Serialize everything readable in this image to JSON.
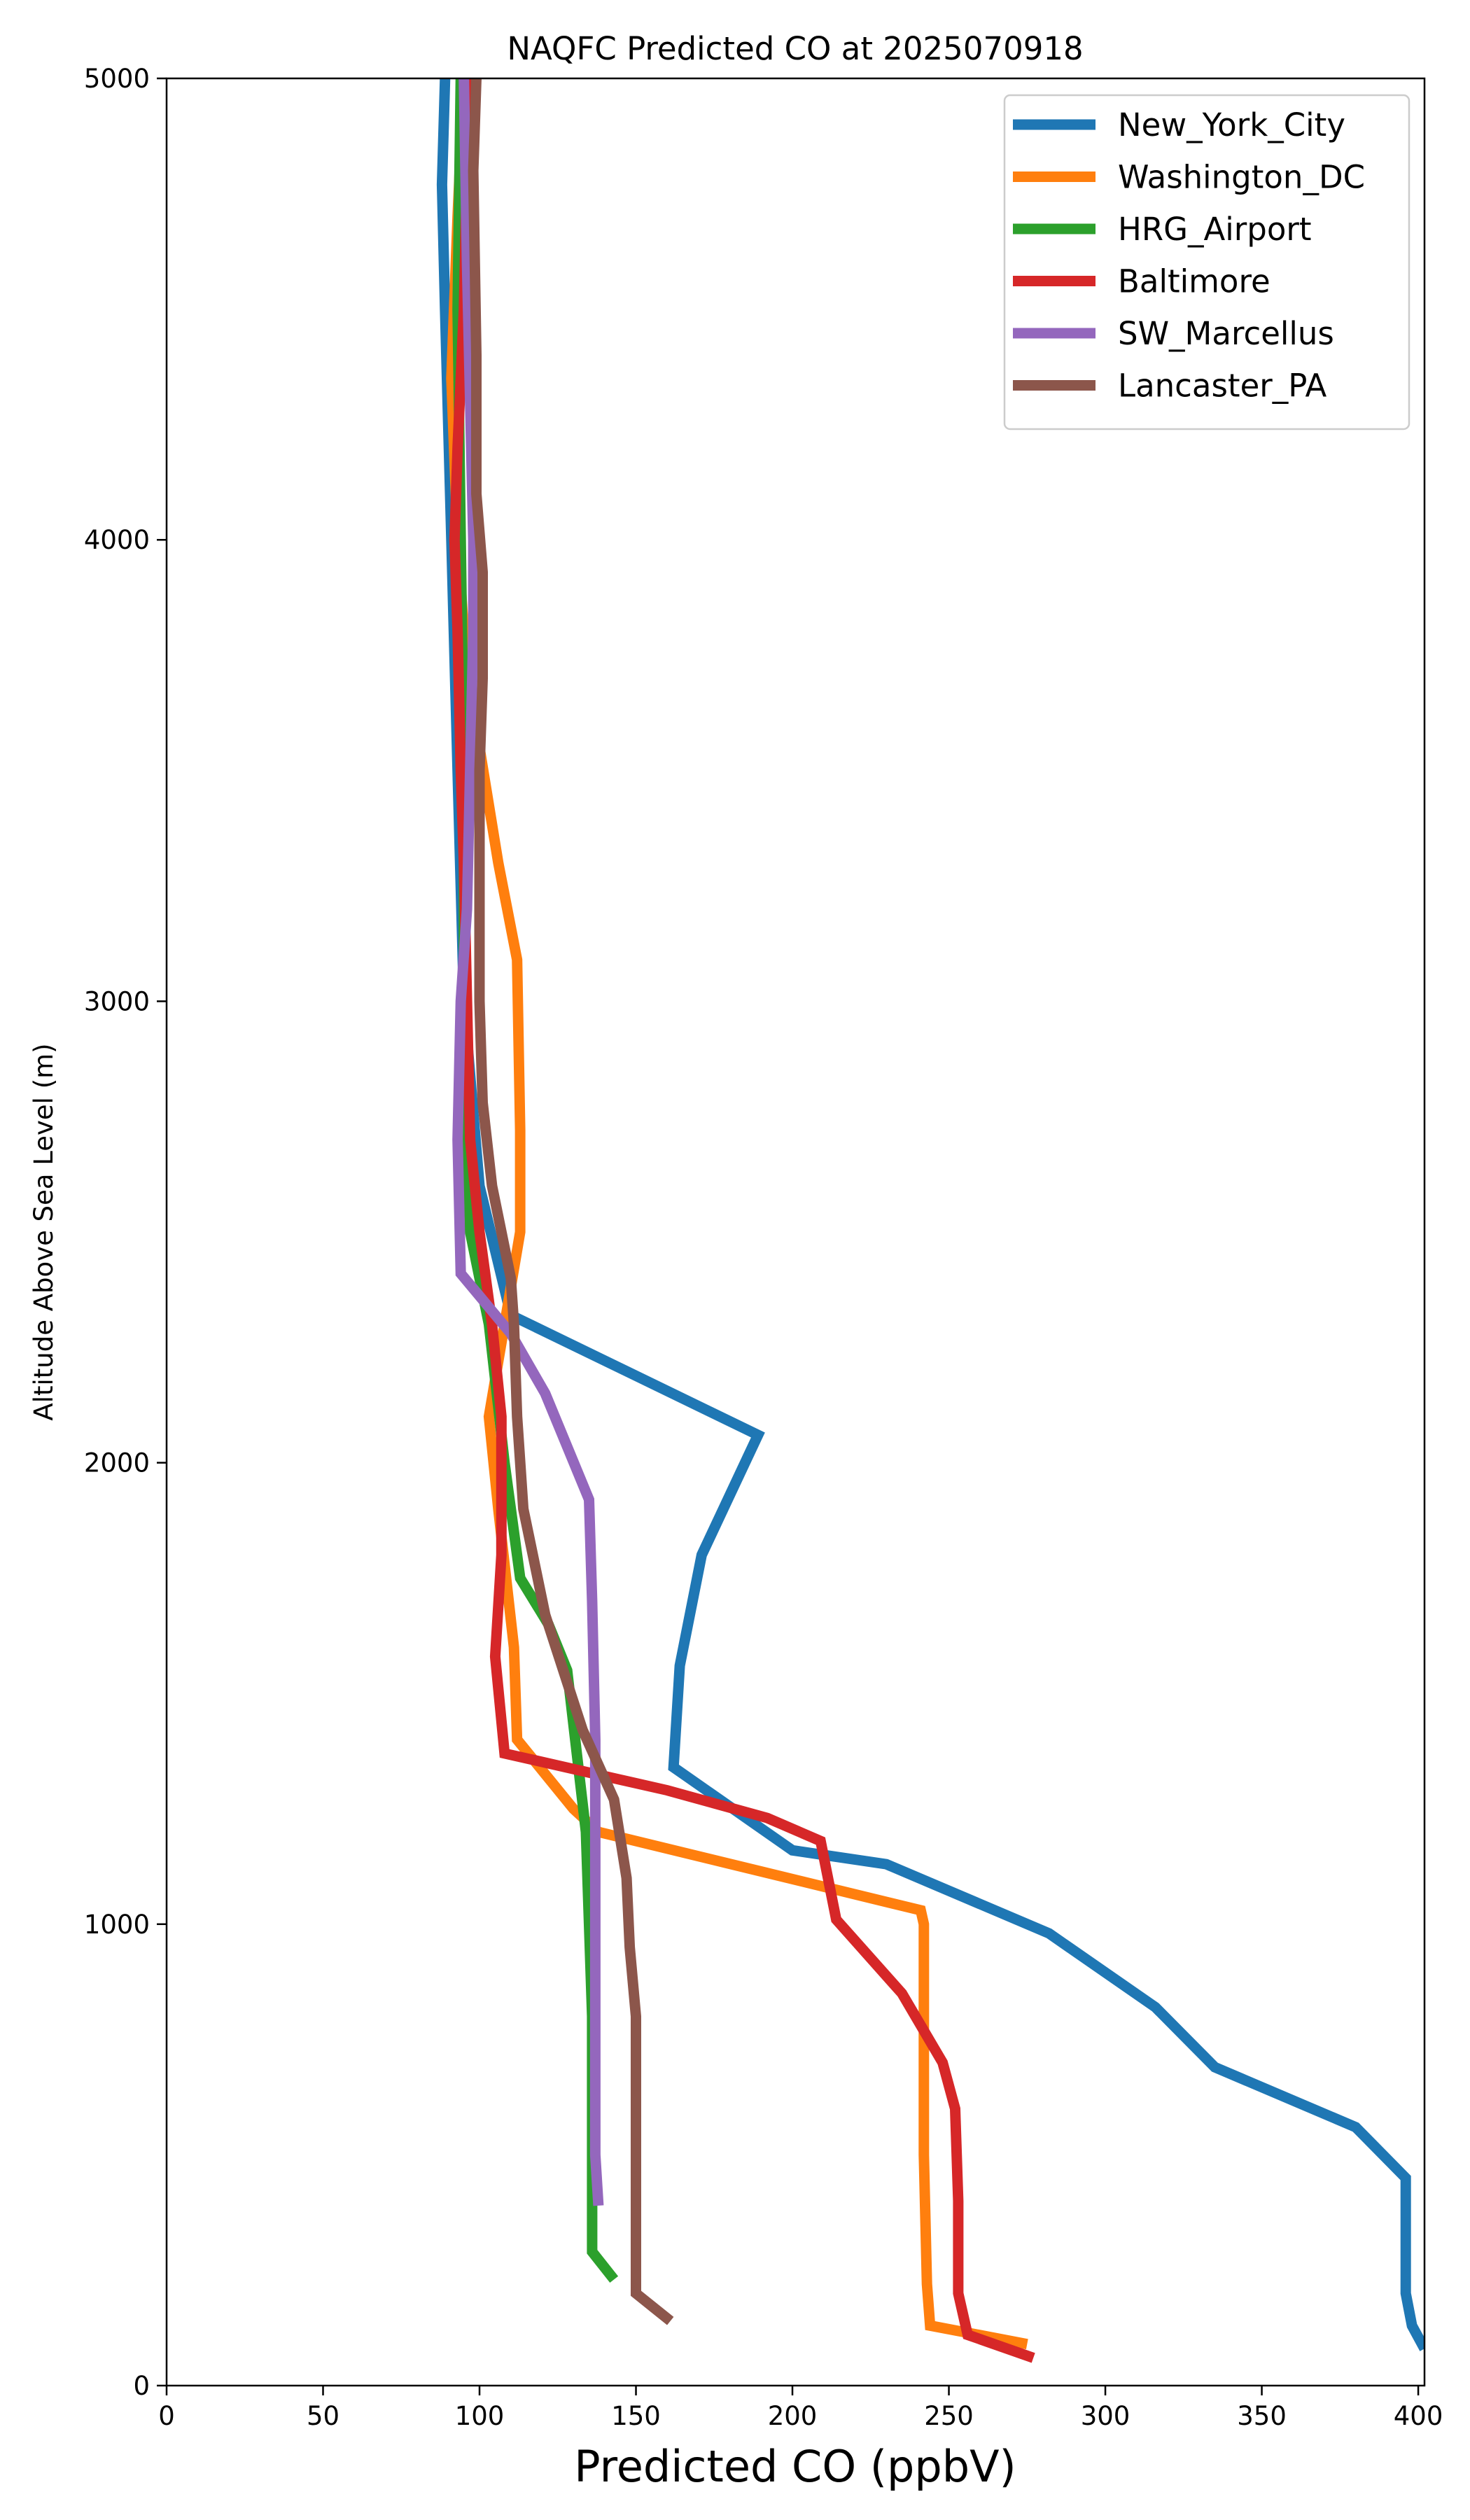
{
  "chart_data": {
    "type": "line",
    "title": "NAQFC Predicted CO at 2025070918",
    "xlabel": "Predicted CO (ppbV)",
    "ylabel": "Altitude Above Sea Level (m)",
    "xlim": [
      0,
      402
    ],
    "ylim": [
      0,
      5000
    ],
    "xticks": [
      "0",
      "50",
      "100",
      "150",
      "200",
      "250",
      "300",
      "350",
      "400"
    ],
    "yticks": [
      "0",
      "1000",
      "2000",
      "3000",
      "4000",
      "5000"
    ],
    "grid": false,
    "legend_position": "top-right",
    "series": [
      {
        "name": "New_York_City",
        "color": "#1f77b4",
        "points": [
          [
            402,
            80
          ],
          [
            398,
            130
          ],
          [
            396,
            200
          ],
          [
            396,
            300
          ],
          [
            396,
            450
          ],
          [
            380,
            560
          ],
          [
            335,
            690
          ],
          [
            316,
            820
          ],
          [
            282,
            980
          ],
          [
            230,
            1130
          ],
          [
            200,
            1160
          ],
          [
            162,
            1340
          ],
          [
            164,
            1560
          ],
          [
            171,
            1800
          ],
          [
            189,
            2060
          ],
          [
            110,
            2320
          ],
          [
            100,
            2600
          ],
          [
            95,
            3000
          ],
          [
            93,
            3500
          ],
          [
            91,
            4000
          ],
          [
            89,
            4500
          ],
          [
            88,
            4770
          ],
          [
            89,
            5000
          ]
        ]
      },
      {
        "name": "Washington_DC",
        "color": "#ff7f0e",
        "points": [
          [
            275,
            90
          ],
          [
            244,
            130
          ],
          [
            243,
            220
          ],
          [
            242,
            500
          ],
          [
            242,
            700
          ],
          [
            242,
            1000
          ],
          [
            241,
            1030
          ],
          [
            138,
            1200
          ],
          [
            130,
            1250
          ],
          [
            112,
            1400
          ],
          [
            111,
            1600
          ],
          [
            106,
            1900
          ],
          [
            103,
            2100
          ],
          [
            108,
            2300
          ],
          [
            113,
            2500
          ],
          [
            113,
            2720
          ],
          [
            112,
            3090
          ],
          [
            106,
            3300
          ],
          [
            100,
            3550
          ],
          [
            95,
            3800
          ],
          [
            93,
            4000
          ],
          [
            91,
            4350
          ],
          [
            93,
            4700
          ],
          [
            95,
            5000
          ]
        ]
      },
      {
        "name": "HRG_Airport",
        "color": "#2ca02c",
        "points": [
          [
            143,
            230
          ],
          [
            136,
            290
          ],
          [
            136,
            500
          ],
          [
            136,
            800
          ],
          [
            134,
            1200
          ],
          [
            128,
            1550
          ],
          [
            122,
            1650
          ],
          [
            113,
            1750
          ],
          [
            108,
            2000
          ],
          [
            103,
            2300
          ],
          [
            97,
            2500
          ],
          [
            95,
            3000
          ],
          [
            95,
            3500
          ],
          [
            94,
            4000
          ],
          [
            93,
            4500
          ],
          [
            94,
            5000
          ]
        ]
      },
      {
        "name": "Baltimore",
        "color": "#d62728",
        "points": [
          [
            277,
            60
          ],
          [
            256,
            110
          ],
          [
            253,
            200
          ],
          [
            253,
            400
          ],
          [
            252,
            600
          ],
          [
            248,
            700
          ],
          [
            235,
            850
          ],
          [
            214,
            1010
          ],
          [
            209,
            1180
          ],
          [
            192,
            1230
          ],
          [
            160,
            1290
          ],
          [
            108,
            1370
          ],
          [
            105,
            1580
          ],
          [
            107,
            1800
          ],
          [
            107,
            2100
          ],
          [
            104,
            2300
          ],
          [
            100,
            2500
          ],
          [
            97,
            2700
          ],
          [
            96,
            3000
          ],
          [
            95,
            3300
          ],
          [
            94,
            3500
          ],
          [
            93,
            3800
          ],
          [
            92,
            4000
          ],
          [
            93,
            4200
          ],
          [
            95,
            4500
          ],
          [
            96,
            4800
          ],
          [
            97,
            5000
          ]
        ]
      },
      {
        "name": "SW_Marcellus",
        "color": "#9467bd",
        "points": [
          [
            138,
            390
          ],
          [
            137,
            500
          ],
          [
            137,
            800
          ],
          [
            137,
            1100
          ],
          [
            137,
            1400
          ],
          [
            136,
            1700
          ],
          [
            135,
            1920
          ],
          [
            121,
            2150
          ],
          [
            110,
            2280
          ],
          [
            94,
            2410
          ],
          [
            93,
            2700
          ],
          [
            94,
            3000
          ],
          [
            96,
            3200
          ],
          [
            97,
            3500
          ],
          [
            98,
            3800
          ],
          [
            98,
            4000
          ],
          [
            97,
            4300
          ],
          [
            96,
            4600
          ],
          [
            95,
            5000
          ]
        ]
      },
      {
        "name": "Lancaster_PA",
        "color": "#8c564b",
        "points": [
          [
            161,
            140
          ],
          [
            150,
            200
          ],
          [
            150,
            500
          ],
          [
            150,
            800
          ],
          [
            148,
            950
          ],
          [
            147,
            1100
          ],
          [
            143,
            1270
          ],
          [
            133,
            1420
          ],
          [
            121,
            1670
          ],
          [
            114,
            1900
          ],
          [
            112,
            2100
          ],
          [
            111,
            2300
          ],
          [
            110,
            2400
          ],
          [
            104,
            2600
          ],
          [
            101,
            2780
          ],
          [
            100,
            3000
          ],
          [
            100,
            3500
          ],
          [
            101,
            3700
          ],
          [
            101,
            3930
          ],
          [
            99,
            4100
          ],
          [
            99,
            4400
          ],
          [
            98,
            4800
          ],
          [
            99,
            5000
          ]
        ]
      }
    ]
  }
}
